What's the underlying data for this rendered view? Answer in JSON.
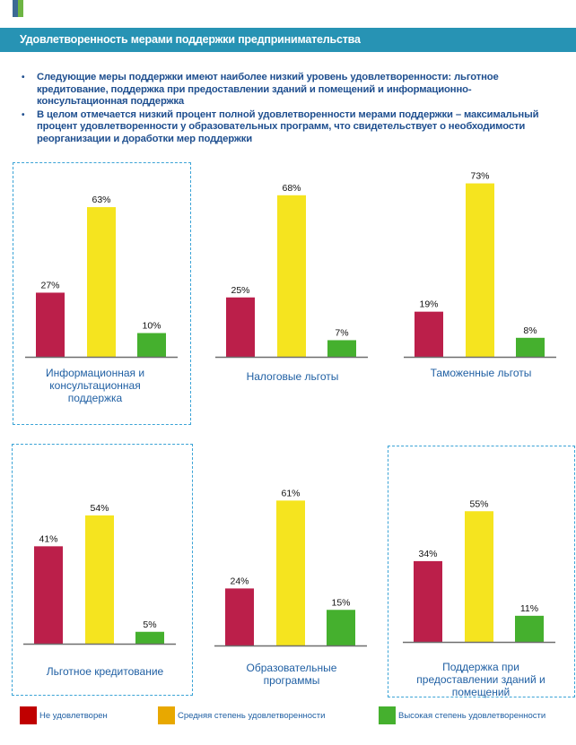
{
  "header": {
    "title": "Удовлетворенность мерами поддержки предпринимательства"
  },
  "bullets": [
    "Следующие меры поддержки имеют наиболее низкий уровень удовлетворенности: льготное кредитование, поддержка при предоставлении зданий и помещений и информационно-консультационная поддержка",
    "В целом отмечается низкий процент полной удовлетворенности мерами поддержки – максимальный процент удовлетворенности у образовательных программ, что свидетельствует о необходимости реорганизации и доработки мер поддержки"
  ],
  "colors": {
    "not_satisfied": "#bb1f4a",
    "medium": "#f5e41f",
    "high": "#45b02e",
    "legend_not_satisfied": "#c00000",
    "legend_medium": "#e8a800",
    "legend_high": "#45b02e",
    "header": "#2793b4",
    "highlight_border": "#3aa3d6"
  },
  "legend": [
    {
      "label": "Не удовлетворен",
      "color_key": "legend_not_satisfied"
    },
    {
      "label": "Средняя степень удовлетворенности",
      "color_key": "legend_medium"
    },
    {
      "label": "Высокая степень удовлетворенности",
      "color_key": "legend_high"
    }
  ],
  "chart_data": [
    {
      "type": "bar",
      "title": "Информационная и консультационная поддержка",
      "highlighted": true,
      "categories": [
        "Не удовлетворен",
        "Средняя степень удовлетворенности",
        "Высокая степень удовлетворенности"
      ],
      "values": [
        27,
        63,
        10
      ],
      "labels": [
        "27%",
        "63%",
        "10%"
      ],
      "ylim": [
        0,
        100
      ]
    },
    {
      "type": "bar",
      "title": "Налоговые льготы",
      "highlighted": false,
      "categories": [
        "Не удовлетворен",
        "Средняя степень удовлетворенности",
        "Высокая степень удовлетворенности"
      ],
      "values": [
        25,
        68,
        7
      ],
      "labels": [
        "25%",
        "68%",
        "7%"
      ],
      "ylim": [
        0,
        100
      ]
    },
    {
      "type": "bar",
      "title": "Таможенные льготы",
      "highlighted": false,
      "categories": [
        "Не удовлетворен",
        "Средняя степень удовлетворенности",
        "Высокая степень удовлетворенности"
      ],
      "values": [
        19,
        73,
        8
      ],
      "labels": [
        "19%",
        "73%",
        "8%"
      ],
      "ylim": [
        0,
        100
      ]
    },
    {
      "type": "bar",
      "title": "Льготное кредитование",
      "highlighted": true,
      "categories": [
        "Не удовлетворен",
        "Средняя степень удовлетворенности",
        "Высокая степень удовлетворенности"
      ],
      "values": [
        41,
        54,
        5
      ],
      "labels": [
        "41%",
        "54%",
        "5%"
      ],
      "ylim": [
        0,
        100
      ]
    },
    {
      "type": "bar",
      "title": "Образовательные программы",
      "highlighted": false,
      "categories": [
        "Не удовлетворен",
        "Средняя степень удовлетворенности",
        "Высокая степень удовлетворенности"
      ],
      "values": [
        24,
        61,
        15
      ],
      "labels": [
        "24%",
        "61%",
        "15%"
      ],
      "ylim": [
        0,
        100
      ]
    },
    {
      "type": "bar",
      "title": "Поддержка при предоставлении зданий и помещений",
      "highlighted": true,
      "categories": [
        "Не удовлетворен",
        "Средняя степень удовлетворенности",
        "Высокая степень удовлетворенности"
      ],
      "values": [
        34,
        55,
        11
      ],
      "labels": [
        "34%",
        "55%",
        "11%"
      ],
      "ylim": [
        0,
        100
      ]
    }
  ]
}
